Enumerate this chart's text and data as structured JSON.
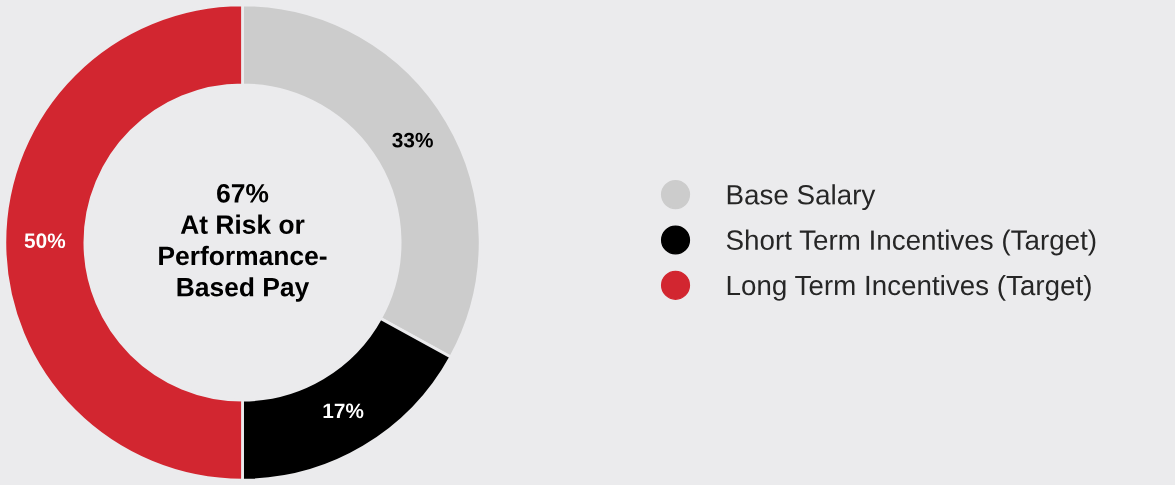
{
  "chart_data": {
    "type": "donut",
    "categories": [
      "Base Salary",
      "Short Term Incentives (Target)",
      "Long Term Incentives (Target)"
    ],
    "values": [
      33,
      17,
      50
    ],
    "colors": [
      "#cccccc",
      "#000000",
      "#d22630"
    ],
    "value_labels": [
      "33%",
      "17%",
      "50%"
    ],
    "annotations": [
      "67%\nAt Risk or\nPerformance-\nBased Pay"
    ],
    "legend": "right"
  }
}
